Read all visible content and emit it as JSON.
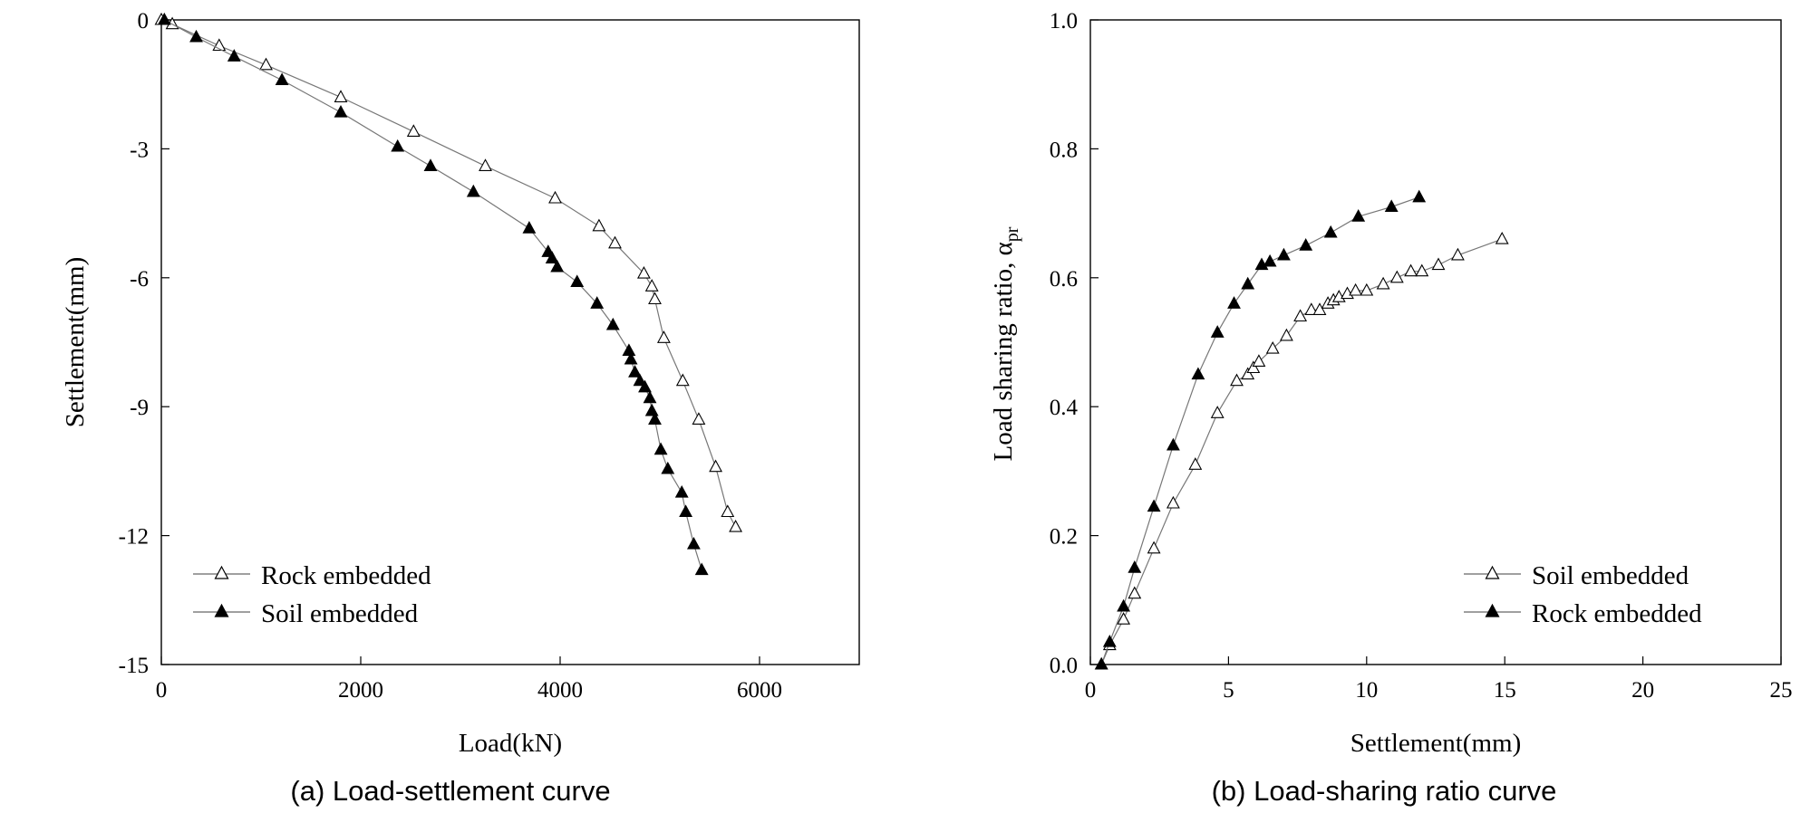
{
  "chart_data": [
    {
      "type": "scatter",
      "caption": "(a) Load-settlement curve",
      "xlabel": "Load(kN)",
      "ylabel": "Settlement(mm)",
      "xlim": [
        0,
        7000
      ],
      "ylim": [
        -15,
        0
      ],
      "xticks": [
        0,
        2000,
        4000,
        6000
      ],
      "yticks": [
        0,
        -3,
        -6,
        -9,
        -12,
        -15
      ],
      "grid": false,
      "legend_position": "bottom-left",
      "series": [
        {
          "name": "Rock embedded",
          "marker": "open-triangle",
          "x": [
            0,
            110,
            580,
            1050,
            1800,
            2530,
            3250,
            3950,
            4390,
            4550,
            4840,
            4920,
            4950,
            5040,
            5230,
            5390,
            5560,
            5680,
            5760
          ],
          "y": [
            0,
            -0.1,
            -0.6,
            -1.05,
            -1.8,
            -2.6,
            -3.4,
            -4.15,
            -4.8,
            -5.2,
            -5.9,
            -6.2,
            -6.5,
            -7.4,
            -8.4,
            -9.3,
            -10.4,
            -11.45,
            -11.8
          ]
        },
        {
          "name": "Soil embedded",
          "marker": "filled-triangle",
          "x": [
            30,
            350,
            730,
            1210,
            1800,
            2370,
            2700,
            3130,
            3690,
            3880,
            3920,
            3970,
            4170,
            4370,
            4530,
            4690,
            4710,
            4750,
            4800,
            4850,
            4900,
            4920,
            4950,
            5010,
            5080,
            5220,
            5260,
            5340,
            5420
          ],
          "y": [
            0,
            -0.4,
            -0.85,
            -1.4,
            -2.15,
            -2.95,
            -3.4,
            -4.0,
            -4.85,
            -5.4,
            -5.55,
            -5.75,
            -6.1,
            -6.6,
            -7.1,
            -7.7,
            -7.9,
            -8.2,
            -8.4,
            -8.55,
            -8.8,
            -9.1,
            -9.3,
            -10.0,
            -10.45,
            -11.0,
            -11.45,
            -12.2,
            -12.8
          ]
        }
      ]
    },
    {
      "type": "scatter",
      "caption": "(b) Load-sharing ratio curve",
      "xlabel": "Settlement(mm)",
      "ylabel_main": "Load sharing ratio, α",
      "ylabel_sub": "pr",
      "xlim": [
        0,
        25
      ],
      "ylim": [
        0,
        1.0
      ],
      "xticks": [
        0,
        5,
        10,
        15,
        20,
        25
      ],
      "yticks": [
        0.0,
        0.2,
        0.4,
        0.6,
        0.8,
        1.0
      ],
      "ytick_labels": [
        "0.0",
        "0.2",
        "0.4",
        "0.6",
        "0.8",
        "1.0"
      ],
      "grid": false,
      "legend_position": "bottom-right",
      "series": [
        {
          "name": "Soil embedded",
          "marker": "open-triangle",
          "x": [
            0.4,
            0.7,
            1.2,
            1.6,
            2.3,
            3.0,
            3.8,
            4.6,
            5.3,
            5.7,
            5.9,
            6.1,
            6.6,
            7.1,
            7.6,
            8.0,
            8.3,
            8.6,
            8.8,
            9.0,
            9.3,
            9.6,
            10.0,
            10.6,
            11.1,
            11.6,
            12.0,
            12.6,
            13.3,
            14.9
          ],
          "y": [
            0.0,
            0.03,
            0.07,
            0.11,
            0.18,
            0.25,
            0.31,
            0.39,
            0.44,
            0.45,
            0.46,
            0.47,
            0.49,
            0.51,
            0.54,
            0.55,
            0.55,
            0.56,
            0.565,
            0.57,
            0.575,
            0.58,
            0.58,
            0.59,
            0.6,
            0.61,
            0.61,
            0.62,
            0.635,
            0.66
          ]
        },
        {
          "name": "Rock embedded",
          "marker": "filled-triangle",
          "x": [
            0.4,
            0.7,
            1.2,
            1.6,
            2.3,
            3.0,
            3.9,
            4.6,
            5.2,
            5.7,
            6.2,
            6.5,
            7.0,
            7.8,
            8.7,
            9.7,
            10.9,
            11.9
          ],
          "y": [
            0.0,
            0.035,
            0.09,
            0.15,
            0.245,
            0.34,
            0.45,
            0.515,
            0.56,
            0.59,
            0.62,
            0.625,
            0.635,
            0.65,
            0.67,
            0.695,
            0.71,
            0.725
          ]
        }
      ]
    }
  ]
}
